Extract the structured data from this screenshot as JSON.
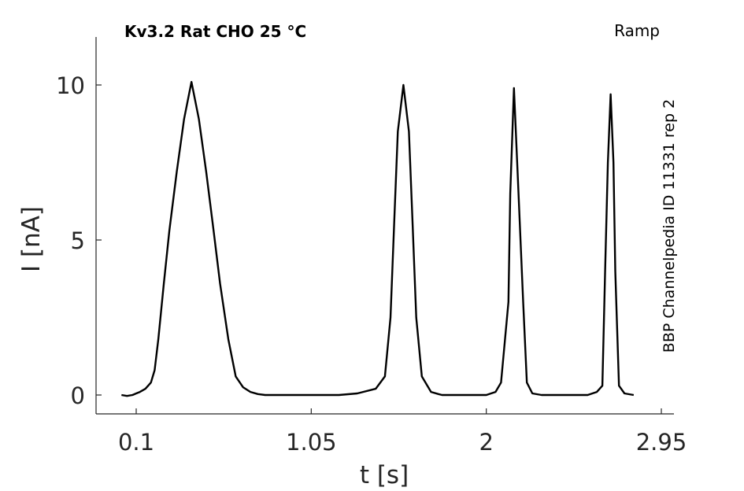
{
  "chart_data": {
    "type": "line",
    "title": "Kv3.2  Rat  CHO  25 °C",
    "protocol_label": "Ramp",
    "side_annotation": "BBP Channelpedia ID 11331 rep 2",
    "xlabel": "t [s]",
    "ylabel": "I [nA]",
    "xlim": [
      0.0,
      2.95
    ],
    "ylim": [
      -0.6,
      11.6
    ],
    "xticks": [
      0.1,
      1.05,
      2,
      2.95
    ],
    "xtick_labels": [
      "0.1",
      "1.05",
      "2",
      "2.95"
    ],
    "yticks": [
      0,
      5,
      10
    ],
    "ytick_labels": [
      "0",
      "5",
      "10"
    ],
    "grid": false,
    "line_color": "#000000",
    "series": [
      {
        "x": [
          0.02,
          0.05,
          0.08,
          0.1,
          0.12,
          0.15,
          0.18,
          0.2,
          0.22,
          0.25,
          0.28,
          0.32,
          0.36,
          0.4,
          0.44,
          0.48,
          0.52,
          0.555,
          0.6,
          0.64,
          0.68,
          0.72,
          0.76,
          0.8,
          0.84,
          0.87,
          0.9,
          0.95,
          1.0,
          1.05,
          1.1,
          1.2,
          1.3,
          1.4,
          1.45,
          1.48,
          1.5,
          1.52,
          1.55,
          1.58,
          1.6,
          1.62,
          1.65,
          1.7,
          1.74,
          1.76,
          1.79,
          1.82,
          1.85,
          1.9,
          1.95,
          2.0,
          2.05,
          2.08,
          2.12,
          2.13,
          2.15,
          2.175,
          2.2,
          2.22,
          2.25,
          2.3,
          2.35,
          2.4,
          2.45,
          2.55,
          2.6,
          2.63,
          2.645,
          2.66,
          2.675,
          2.69,
          2.7,
          2.72,
          2.75,
          2.8
        ],
        "y": [
          0.0,
          -0.03,
          0.0,
          0.05,
          0.1,
          0.2,
          0.4,
          0.8,
          1.8,
          3.6,
          5.3,
          7.2,
          8.9,
          10.1,
          8.9,
          7.2,
          5.3,
          3.6,
          1.8,
          0.6,
          0.25,
          0.1,
          0.03,
          0.0,
          0.0,
          0.0,
          0.0,
          0.0,
          0.0,
          0.0,
          0.0,
          0.0,
          0.05,
          0.2,
          0.6,
          2.5,
          5.5,
          8.5,
          10.0,
          8.5,
          5.5,
          2.5,
          0.6,
          0.1,
          0.03,
          0.0,
          0.0,
          0.0,
          0.0,
          0.0,
          0.0,
          0.0,
          0.1,
          0.4,
          3.0,
          6.5,
          9.9,
          6.5,
          3.0,
          0.4,
          0.05,
          0.0,
          0.0,
          0.0,
          0.0,
          0.0,
          0.1,
          0.3,
          4.0,
          7.5,
          9.7,
          7.5,
          4.0,
          0.3,
          0.05,
          0.0
        ]
      }
    ]
  }
}
